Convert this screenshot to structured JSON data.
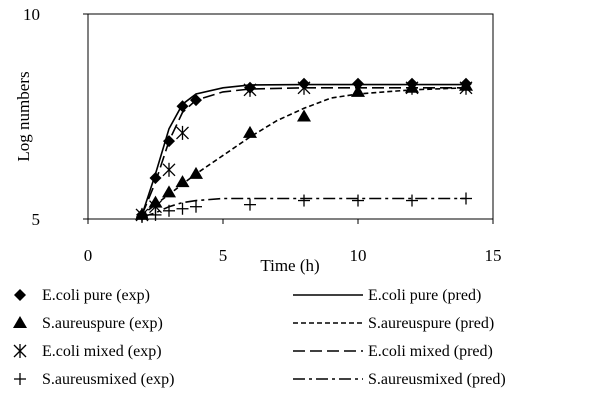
{
  "chart_data": {
    "type": "scatter",
    "xlabel": "Time (h)",
    "ylabel": "Log numbers",
    "xlim": [
      0,
      15
    ],
    "ylim": [
      5,
      10
    ],
    "x_ticks": [
      "0",
      "5",
      "10",
      "15"
    ],
    "y_ticks": [
      "5",
      "10"
    ],
    "grid": false,
    "legend_placement": "bottom",
    "series": [
      {
        "name": "E.coli pure (exp)",
        "kind": "points",
        "marker": "diamond",
        "x": [
          2,
          2.5,
          3,
          3.5,
          4,
          6,
          8,
          10,
          12,
          14
        ],
        "y": [
          5.1,
          6.0,
          6.9,
          7.75,
          7.9,
          8.2,
          8.3,
          8.3,
          8.3,
          8.3
        ]
      },
      {
        "name": "E.coli pure (pred)",
        "kind": "line",
        "dash": "solid",
        "x": [
          2,
          2.5,
          3,
          3.5,
          4,
          5,
          6,
          8,
          10,
          12,
          14
        ],
        "y": [
          5.1,
          6.1,
          7.2,
          7.8,
          8.05,
          8.2,
          8.27,
          8.28,
          8.28,
          8.28,
          8.28
        ]
      },
      {
        "name": "S.aureuspure (exp)",
        "kind": "points",
        "marker": "triangle",
        "x": [
          2,
          2.5,
          3,
          3.5,
          4,
          6,
          8,
          10,
          12,
          14
        ],
        "y": [
          5.1,
          5.4,
          5.65,
          5.9,
          6.1,
          7.1,
          7.5,
          8.1,
          8.2,
          8.25
        ]
      },
      {
        "name": "S.aureuspure (pred)",
        "kind": "line",
        "dash": "short",
        "x": [
          2,
          2.5,
          3,
          3.5,
          4,
          5,
          6,
          7,
          8,
          9,
          10,
          11,
          12,
          14
        ],
        "y": [
          5.1,
          5.35,
          5.6,
          5.85,
          6.1,
          6.55,
          7.0,
          7.4,
          7.7,
          7.95,
          8.05,
          8.1,
          8.15,
          8.2
        ]
      },
      {
        "name": "E.coli mixed (exp)",
        "kind": "points",
        "marker": "asterisk",
        "x": [
          2,
          2.5,
          3,
          3.5,
          6,
          8,
          12,
          14
        ],
        "y": [
          5.1,
          5.3,
          6.2,
          7.1,
          8.15,
          8.2,
          8.2,
          8.2
        ]
      },
      {
        "name": "E.coli mixed (pred)",
        "kind": "line",
        "dash": "long",
        "x": [
          2,
          2.5,
          3,
          3.5,
          4,
          5,
          6,
          8,
          10,
          12,
          14
        ],
        "y": [
          5.1,
          5.9,
          6.9,
          7.6,
          7.9,
          8.1,
          8.17,
          8.2,
          8.2,
          8.2,
          8.2
        ]
      },
      {
        "name": "S.aureusmixed (exp)",
        "kind": "points",
        "marker": "plus",
        "x": [
          2,
          2.5,
          3,
          3.5,
          4,
          6,
          8,
          10,
          12,
          14
        ],
        "y": [
          5.05,
          5.1,
          5.2,
          5.25,
          5.3,
          5.35,
          5.45,
          5.45,
          5.45,
          5.5
        ]
      },
      {
        "name": "S.aureusmixed (pred)",
        "kind": "line",
        "dash": "dashdot",
        "x": [
          2,
          2.5,
          3,
          3.5,
          4,
          5,
          6,
          8,
          10,
          12,
          14
        ],
        "y": [
          5.05,
          5.15,
          5.3,
          5.4,
          5.45,
          5.5,
          5.5,
          5.5,
          5.5,
          5.5,
          5.5
        ]
      }
    ]
  }
}
